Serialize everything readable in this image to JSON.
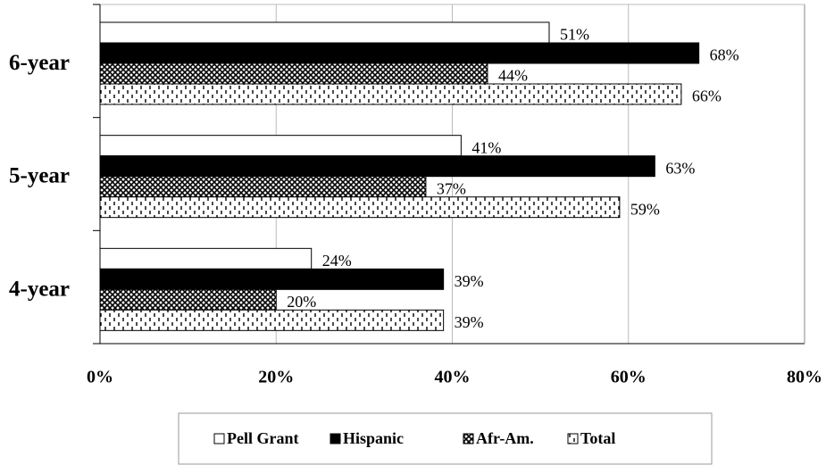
{
  "chart_data": {
    "type": "hbar",
    "categories": [
      "6-year",
      "5-year",
      "4-year"
    ],
    "series": [
      {
        "name": "Pell Grant",
        "color": "#ffffff",
        "pattern": "solid",
        "values": [
          51,
          41,
          24
        ],
        "value_labels": [
          "51%",
          "41%",
          "24%"
        ]
      },
      {
        "name": "Hispanic",
        "color": "#000000",
        "pattern": "solid",
        "values": [
          68,
          63,
          39
        ],
        "value_labels": [
          "68%",
          "63%",
          "39%"
        ]
      },
      {
        "name": "Afr-Am.",
        "color": "#ffffff",
        "pattern": "crosshatch",
        "values": [
          44,
          37,
          20
        ],
        "value_labels": [
          "44%",
          "37%",
          "20%"
        ]
      },
      {
        "name": "Total",
        "color": "#ffffff",
        "pattern": "vertical-dash",
        "values": [
          66,
          59,
          39
        ],
        "value_labels": [
          "66%",
          "59%",
          "39%"
        ]
      }
    ],
    "xlim": [
      0,
      80
    ],
    "xticks": [
      {
        "value": 0,
        "label": "0%"
      },
      {
        "value": 20,
        "label": "20%"
      },
      {
        "value": 40,
        "label": "40%"
      },
      {
        "value": 60,
        "label": "60%"
      },
      {
        "value": 80,
        "label": "80%"
      }
    ],
    "grid": true,
    "legend": "bottom"
  }
}
